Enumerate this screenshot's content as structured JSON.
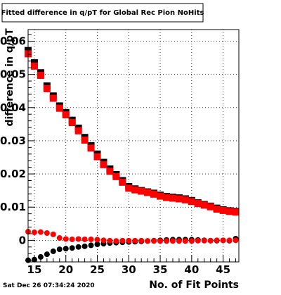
{
  "timestamp": "Sat Dec 26 07:34:24 2020",
  "colors": {
    "series_black": "#000000",
    "series_red": "#ff0000",
    "background": "#ffffff",
    "grid": "#000000"
  },
  "chart_data": {
    "type": "scatter",
    "title": "Fitted difference in q/pT for Global Rec Pion NoHits",
    "xlabel": "No. of Fit Points",
    "ylabel": "difference in q/pT",
    "xlim": [
      14,
      47.5
    ],
    "ylim": [
      -0.0065,
      0.0635
    ],
    "grid": true,
    "x_ticks": [
      15,
      20,
      25,
      30,
      35,
      40,
      45
    ],
    "x_tick_labels": [
      "15",
      "20",
      "25",
      "30",
      "35",
      "40",
      "45"
    ],
    "y_ticks": [
      0,
      0.01,
      0.02,
      0.03,
      0.04,
      0.05,
      0.06
    ],
    "y_tick_labels": [
      "0",
      "0.01",
      "0.02",
      "0.03",
      "0.04",
      "0.05",
      "0.06"
    ],
    "series": [
      {
        "marker": "square",
        "color": "#000000",
        "x": [
          14,
          15,
          16,
          17,
          18,
          19,
          20,
          21,
          22,
          23,
          24,
          25,
          26,
          27,
          28,
          29,
          30,
          31,
          32,
          33,
          34,
          35,
          36,
          37,
          38,
          39,
          40,
          41,
          42,
          43,
          44,
          45,
          46,
          47
        ],
        "y": [
          0.0572,
          0.0535,
          0.0505,
          0.0465,
          0.0435,
          0.0405,
          0.0385,
          0.0362,
          0.0338,
          0.031,
          0.0285,
          0.026,
          0.0235,
          0.0215,
          0.0198,
          0.018,
          0.0162,
          0.0155,
          0.015,
          0.0146,
          0.0142,
          0.0136,
          0.0132,
          0.013,
          0.0128,
          0.0125,
          0.012,
          0.0113,
          0.0108,
          0.0103,
          0.0097,
          0.0092,
          0.0089,
          0.0087
        ]
      },
      {
        "marker": "square",
        "color": "#ff0000",
        "x": [
          14,
          15,
          16,
          17,
          18,
          19,
          20,
          21,
          22,
          23,
          24,
          25,
          26,
          27,
          28,
          29,
          30,
          31,
          32,
          33,
          34,
          35,
          36,
          37,
          38,
          39,
          40,
          41,
          42,
          43,
          44,
          45,
          46,
          47
        ],
        "y": [
          0.0562,
          0.0525,
          0.0497,
          0.0457,
          0.0428,
          0.0398,
          0.0378,
          0.0355,
          0.033,
          0.0302,
          0.0278,
          0.0252,
          0.0228,
          0.0208,
          0.0192,
          0.0175,
          0.0157,
          0.0152,
          0.0148,
          0.0144,
          0.0139,
          0.0133,
          0.0129,
          0.0127,
          0.0125,
          0.0122,
          0.0117,
          0.0111,
          0.0106,
          0.0101,
          0.0094,
          0.009,
          0.0087,
          0.0085
        ]
      },
      {
        "marker": "circle",
        "color": "#000000",
        "x": [
          14,
          15,
          16,
          17,
          18,
          19,
          20,
          21,
          22,
          23,
          24,
          25,
          26,
          27,
          28,
          29,
          30,
          31,
          32,
          33,
          34,
          35,
          36,
          37,
          38,
          39,
          40,
          41,
          42,
          43,
          44,
          45,
          46,
          47
        ],
        "y": [
          -0.006,
          -0.0058,
          -0.005,
          -0.0042,
          -0.0033,
          -0.0027,
          -0.0025,
          -0.0023,
          -0.002,
          -0.0018,
          -0.0015,
          -0.0012,
          -0.001,
          -0.0008,
          -0.0007,
          -0.0006,
          -0.0005,
          -0.0004,
          -0.0003,
          -0.0002,
          -0.0001,
          0.0,
          0.0001,
          0.0002,
          0.0002,
          0.0002,
          0.0002,
          0.0001,
          0.0,
          -0.0001,
          -0.0001,
          0.0,
          -0.0001,
          0.0005
        ]
      },
      {
        "marker": "circle",
        "color": "#ff0000",
        "x": [
          14,
          15,
          16,
          17,
          18,
          19,
          20,
          21,
          22,
          23,
          24,
          25,
          26,
          27,
          28,
          29,
          30,
          31,
          32,
          33,
          34,
          35,
          36,
          37,
          38,
          39,
          40,
          41,
          42,
          43,
          44,
          45,
          46,
          47
        ],
        "y": [
          0.0026,
          0.0024,
          0.0025,
          0.0022,
          0.0018,
          0.0007,
          0.0004,
          0.0003,
          0.0004,
          0.0003,
          0.0003,
          0.0002,
          0.0,
          -0.0001,
          -0.0002,
          -0.0001,
          -0.0001,
          -0.0001,
          -0.0001,
          -0.0002,
          -0.0002,
          -0.0002,
          -0.0002,
          -0.0002,
          -0.0002,
          -0.0002,
          -0.0002,
          -0.0001,
          -0.0001,
          -0.0001,
          0.0,
          0.0,
          0.0,
          0.0
        ]
      }
    ]
  }
}
